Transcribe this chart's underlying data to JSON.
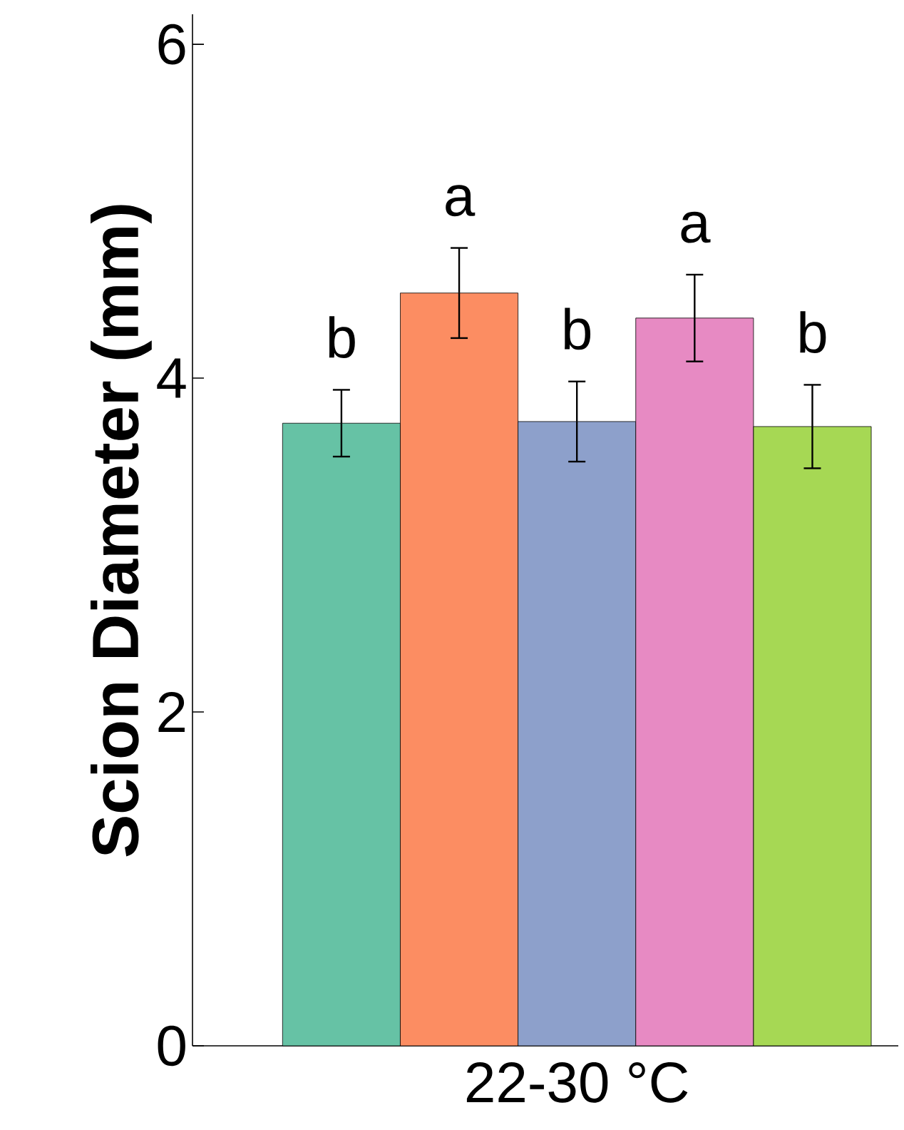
{
  "chart_data": {
    "type": "bar",
    "ylabel": "Scion Diameter (mm)",
    "categories": [
      null,
      null,
      "22-30 °C",
      null,
      null
    ],
    "values": [
      3.73,
      4.51,
      3.74,
      4.36,
      3.71
    ],
    "errors": [
      0.2,
      0.27,
      0.24,
      0.26,
      0.25
    ],
    "colors": [
      "#66c2a5",
      "#fc8d62",
      "#8da0cb",
      "#e78ac3",
      "#a6d854"
    ],
    "annotations": [
      "b",
      "a",
      "b",
      "a",
      "b"
    ],
    "ylim": [
      0,
      6.18
    ],
    "yticks": [
      0,
      2,
      4,
      6
    ]
  }
}
